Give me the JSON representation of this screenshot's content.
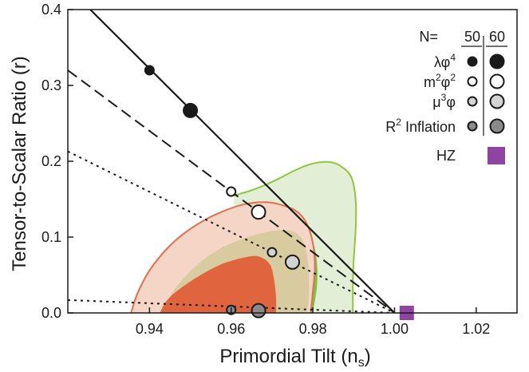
{
  "chart_data": {
    "type": "scatter",
    "xlabel": "Primordial Tilt (n",
    "xlabel_sub": "s",
    "xlabel_close": ")",
    "ylabel": "Tensor-to-Scalar Ratio (r)",
    "xlim": [
      0.92,
      1.03
    ],
    "ylim": [
      0,
      0.4
    ],
    "xticks": [
      "0.94",
      "0.96",
      "0.98",
      "1.00",
      "1.02"
    ],
    "xtick_values": [
      0.94,
      0.96,
      0.98,
      1.0,
      1.02
    ],
    "yticks": [
      "0.0",
      "0.1",
      "0.2",
      "0.3",
      "0.4"
    ],
    "ytick_values": [
      0.0,
      0.1,
      0.2,
      0.3,
      0.4
    ],
    "grid": false,
    "legend_position": "top-right",
    "colors": {
      "green_fill": "#e2efd6",
      "green_edge": "#8dc63f",
      "green_inner": "#7cc242",
      "red_fill": "#f5d5c5",
      "red_edge": "#e07050",
      "tan_fill": "#d9cba0",
      "red_inner": "#e0653f",
      "hz": "#8e44a0"
    },
    "contours": [
      {
        "name": "green-outer",
        "points": [
          [
            0.9607,
            0.155
          ],
          [
            0.964,
            0.16
          ],
          [
            0.968,
            0.168
          ],
          [
            0.972,
            0.178
          ],
          [
            0.976,
            0.189
          ],
          [
            0.98,
            0.197
          ],
          [
            0.984,
            0.199
          ],
          [
            0.987,
            0.193
          ],
          [
            0.9895,
            0.178
          ],
          [
            0.9905,
            0.148
          ],
          [
            0.9905,
            0.112
          ],
          [
            0.99,
            0.07
          ],
          [
            0.9898,
            0.04
          ],
          [
            0.9898,
            0.0
          ]
        ]
      },
      {
        "name": "green-inner",
        "points": [
          [
            0.975,
            0.109
          ],
          [
            0.978,
            0.108
          ],
          [
            0.98,
            0.094
          ],
          [
            0.981,
            0.067
          ],
          [
            0.981,
            0.035
          ],
          [
            0.98,
            0.0
          ]
        ]
      },
      {
        "name": "red-outer",
        "points": [
          [
            0.9355,
            0.0
          ],
          [
            0.937,
            0.025
          ],
          [
            0.94,
            0.056
          ],
          [
            0.944,
            0.083
          ],
          [
            0.948,
            0.103
          ],
          [
            0.953,
            0.121
          ],
          [
            0.958,
            0.134
          ],
          [
            0.963,
            0.143
          ],
          [
            0.968,
            0.146
          ],
          [
            0.972,
            0.143
          ],
          [
            0.976,
            0.134
          ],
          [
            0.9785,
            0.118
          ],
          [
            0.98,
            0.092
          ],
          [
            0.9805,
            0.06
          ],
          [
            0.98,
            0.028
          ],
          [
            0.9795,
            0.0
          ]
        ]
      },
      {
        "name": "tan-middle",
        "points": [
          [
            0.943,
            0.0
          ],
          [
            0.946,
            0.03
          ],
          [
            0.951,
            0.06
          ],
          [
            0.957,
            0.084
          ],
          [
            0.963,
            0.098
          ],
          [
            0.969,
            0.107
          ],
          [
            0.974,
            0.109
          ],
          [
            0.977,
            0.1
          ],
          [
            0.9785,
            0.08
          ],
          [
            0.979,
            0.05
          ],
          [
            0.979,
            0.02
          ],
          [
            0.9785,
            0.0
          ]
        ]
      },
      {
        "name": "red-inner",
        "points": [
          [
            0.9425,
            0.0
          ],
          [
            0.9445,
            0.018
          ],
          [
            0.9485,
            0.036
          ],
          [
            0.9535,
            0.053
          ],
          [
            0.9585,
            0.066
          ],
          [
            0.964,
            0.074
          ],
          [
            0.967,
            0.074
          ],
          [
            0.9695,
            0.064
          ],
          [
            0.9705,
            0.044
          ],
          [
            0.971,
            0.02
          ],
          [
            0.971,
            0.0
          ]
        ]
      }
    ],
    "lines": [
      {
        "name": "lambda-phi4",
        "style": "solid",
        "points": [
          [
            0.9255,
            0.4
          ],
          [
            1.0,
            0.0
          ]
        ]
      },
      {
        "name": "m2-phi2",
        "style": "dashed",
        "points": [
          [
            0.92,
            0.32
          ],
          [
            1.0,
            0.0
          ]
        ]
      },
      {
        "name": "mu3-phi",
        "style": "dotted",
        "points": [
          [
            0.92,
            0.213
          ],
          [
            1.0,
            0.0
          ]
        ]
      },
      {
        "name": "r2-inflation",
        "style": "dotted",
        "points": [
          [
            0.92,
            0.017
          ],
          [
            1.0,
            0.0
          ]
        ]
      }
    ],
    "series": [
      {
        "model": "λφ⁴",
        "fill": "#1a1a1a",
        "points": [
          {
            "n": 50,
            "x": 0.94,
            "y": 0.32
          },
          {
            "n": 60,
            "x": 0.95,
            "y": 0.267
          }
        ]
      },
      {
        "model": "m²φ²",
        "fill": "#ffffff",
        "points": [
          {
            "n": 50,
            "x": 0.96,
            "y": 0.16
          },
          {
            "n": 60,
            "x": 0.9667,
            "y": 0.133
          }
        ]
      },
      {
        "model": "μ³φ",
        "fill": "#d3d3d3",
        "points": [
          {
            "n": 50,
            "x": 0.97,
            "y": 0.08
          },
          {
            "n": 60,
            "x": 0.975,
            "y": 0.067
          }
        ]
      },
      {
        "model": "R² Inflation",
        "fill": "#8a8a8a",
        "points": [
          {
            "n": 50,
            "x": 0.96,
            "y": 0.004
          },
          {
            "n": 60,
            "x": 0.9667,
            "y": 0.003
          }
        ]
      }
    ],
    "hz_point": {
      "x": 1.003,
      "y": 0.0
    },
    "legend": {
      "header_prefix": "N=",
      "header_n": [
        "50",
        "60"
      ],
      "labels": {
        "lambda_main": "λφ",
        "lambda_sup": "4",
        "m_main": "m",
        "m_sup": "2",
        "m_phi": "φ",
        "m_sup2": "2",
        "mu_main": "μ",
        "mu_sup": "3",
        "mu_phi": "φ",
        "r_main": "R",
        "r_sup": "2",
        "r_rest": " Inflation",
        "hz": "HZ"
      }
    }
  }
}
